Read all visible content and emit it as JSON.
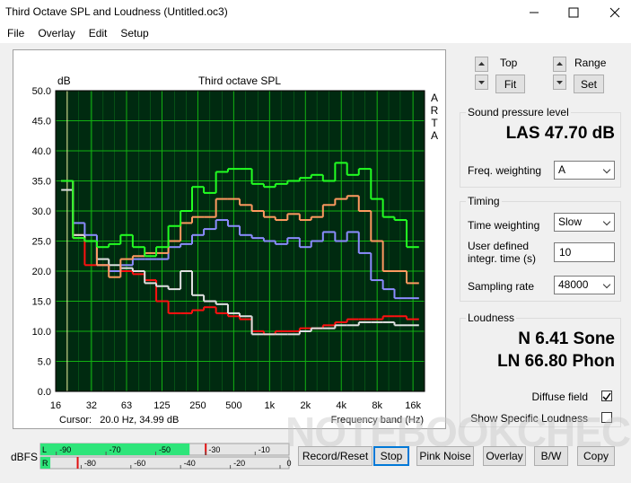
{
  "window": {
    "title": "Third Octave SPL and Loudness (Untitled.oc3)"
  },
  "menu": [
    "File",
    "Overlay",
    "Edit",
    "Setup"
  ],
  "chart_data": {
    "type": "line",
    "step": true,
    "log_x": true,
    "grid": true,
    "title": "Third octave SPL",
    "y_label": "dB",
    "x_label": "Frequency band (Hz)",
    "brand": "ARTA",
    "cursor": "Cursor:   20.0 Hz, 34.99 dB",
    "cursor_x": 20,
    "x": [
      20,
      25,
      31.5,
      40,
      50,
      63,
      80,
      100,
      125,
      160,
      200,
      250,
      315,
      400,
      500,
      630,
      800,
      1000,
      1250,
      1600,
      2000,
      2500,
      3150,
      4000,
      5000,
      6300,
      8000,
      10000,
      12500,
      16000
    ],
    "xlim": [
      16,
      20000
    ],
    "xticks": [
      16,
      32,
      63,
      125,
      250,
      500,
      {
        "value": 1000,
        "label": "1k"
      },
      {
        "value": 2000,
        "label": "2k"
      },
      {
        "value": 4000,
        "label": "4k"
      },
      {
        "value": 8000,
        "label": "8k"
      },
      {
        "value": 16000,
        "label": "16k"
      }
    ],
    "ylim": [
      0,
      50
    ],
    "yticks": [
      {
        "value": 0,
        "label": "0.0"
      },
      {
        "value": 5,
        "label": "5.0"
      },
      {
        "value": 10,
        "label": "10.0"
      },
      {
        "value": 15,
        "label": "15.0"
      },
      {
        "value": 20,
        "label": "20.0"
      },
      {
        "value": 25,
        "label": "25.0"
      },
      {
        "value": 30,
        "label": "30.0"
      },
      {
        "value": 35,
        "label": "35.0"
      },
      {
        "value": 40,
        "label": "40.0"
      },
      {
        "value": 45,
        "label": "45.0"
      },
      {
        "value": 50,
        "label": "50.0"
      }
    ],
    "series": [
      {
        "color": "#ff1010",
        "values": [
          35,
          26,
          21,
          21,
          20,
          20,
          19.5,
          18.5,
          15,
          13,
          13,
          13.5,
          14,
          13,
          12.5,
          12,
          10,
          9.5,
          10,
          10,
          10.5,
          10.5,
          11,
          11.5,
          12,
          12,
          12,
          12.5,
          12.5,
          12
        ]
      },
      {
        "color": "#e0e0e0",
        "values": [
          33.5,
          26,
          25,
          22,
          21,
          20.5,
          20,
          18,
          17.5,
          17,
          20,
          16,
          15,
          14.5,
          13,
          12.5,
          9.5,
          9.5,
          9.5,
          9.5,
          10,
          10.5,
          10.5,
          11,
          11,
          11.5,
          11.5,
          11.5,
          11,
          11
        ]
      },
      {
        "color": "#8c8cff",
        "values": [
          35,
          28,
          26,
          21,
          20,
          21,
          22,
          22,
          22,
          24,
          24.5,
          26,
          27,
          28.5,
          27.5,
          26,
          25.5,
          25,
          24.5,
          25.5,
          24,
          25,
          26.5,
          25,
          26.5,
          23,
          18.5,
          17,
          15.5,
          15.5
        ]
      },
      {
        "color": "#ff9a60",
        "values": [
          35,
          25.5,
          25,
          21,
          19,
          22,
          22.5,
          23,
          23,
          25,
          28,
          29,
          29,
          32,
          32,
          31,
          30,
          29,
          28.5,
          29.5,
          28.5,
          29,
          31,
          32,
          32.5,
          30,
          25,
          20,
          20,
          18
        ]
      },
      {
        "color": "#22ff22",
        "values": [
          35,
          25.5,
          25,
          24,
          24.5,
          26,
          24,
          22.5,
          24,
          27.5,
          30,
          34,
          33,
          36.5,
          37,
          37,
          34.5,
          34,
          34.5,
          35,
          35.5,
          36,
          35,
          38,
          36,
          37,
          32,
          29,
          28.5,
          24
        ]
      }
    ]
  },
  "controls": {
    "top": "Top",
    "fit": "Fit",
    "range": "Range",
    "set": "Set"
  },
  "spl": {
    "group": "Sound pressure level",
    "reading": "LAS 47.70 dB",
    "weighting_label": "Freq. weighting",
    "weighting": "A"
  },
  "timing": {
    "group": "Timing",
    "time_weighting_label": "Time weighting",
    "time_weighting": "Slow",
    "integr_label": "User defined integr. time (s)",
    "integr_time": "10",
    "rate_label": "Sampling rate",
    "rate": "48000"
  },
  "loudness": {
    "group": "Loudness",
    "n": "N 6.41 Sone",
    "ln": "LN 66.80 Phon",
    "diffuse": "Diffuse field",
    "diffuse_checked": true,
    "specific": "Show Specific Loudness",
    "specific_checked": false
  },
  "meters": {
    "label": "dBFS",
    "lim": [
      -100,
      0
    ],
    "channels": [
      {
        "name": "L",
        "ticks": [
          -90,
          -70,
          -50,
          -30,
          -10
        ],
        "level": -40,
        "peak": -33.5
      },
      {
        "name": "R",
        "ticks": [
          -80,
          -60,
          -40,
          -20,
          0
        ],
        "level": -96,
        "peak": -85
      }
    ]
  },
  "buttons": [
    "Record/Reset",
    "Stop",
    "Pink Noise",
    "Overlay",
    "B/W",
    "Copy"
  ],
  "watermark": "NOTEBOOKCHECK"
}
